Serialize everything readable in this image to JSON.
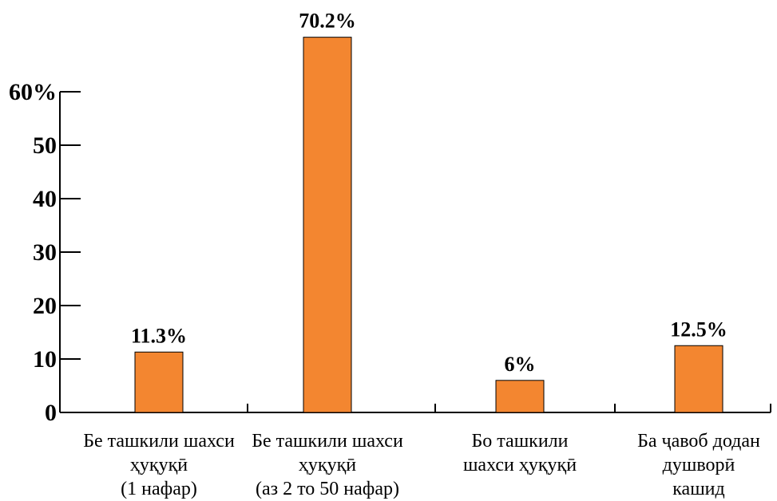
{
  "chart_data": {
    "type": "bar",
    "categories": [
      [
        "Бе ташкили шахси",
        "ҳуқуқӣ",
        "(1 нафар)"
      ],
      [
        "Бе ташкили шахси",
        "ҳуқуқӣ",
        "(аз 2 то 50 нафар)"
      ],
      [
        "Бо ташкили",
        "шахси ҳуқуқӣ"
      ],
      [
        "Ба ҷавоб додан",
        "душворӣ",
        "кашид"
      ]
    ],
    "values": [
      11.3,
      70.2,
      6,
      12.5
    ],
    "value_labels": [
      "11.3%",
      "70.2%",
      "6%",
      "12.5%"
    ],
    "y_ticks": [
      0,
      10,
      20,
      30,
      40,
      50,
      60
    ],
    "y_tick_labels": [
      "0",
      "10",
      "20",
      "30",
      "40",
      "50",
      "60%"
    ],
    "ylim": [
      0,
      60
    ],
    "title": "",
    "xlabel": "",
    "ylabel": "",
    "grid": false,
    "legend": "none",
    "colors": {
      "bar": "#F38630",
      "axis": "#000000"
    }
  }
}
